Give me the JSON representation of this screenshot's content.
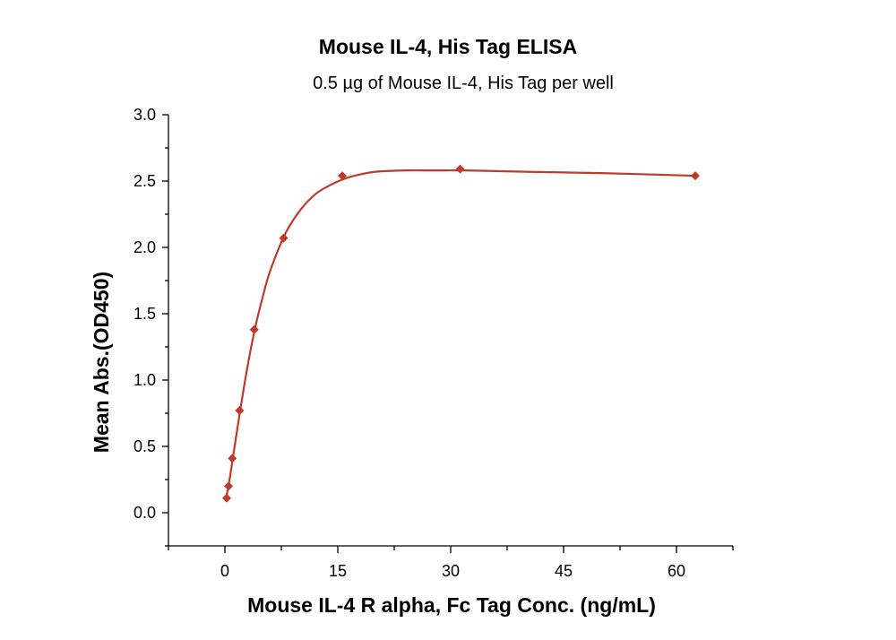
{
  "chart_data": {
    "type": "scatter",
    "title": "Mouse IL-4, His Tag ELISA",
    "subtitle": "0.5 µg of Mouse IL-4, His Tag per well",
    "xlabel": "Mouse IL-4 R alpha, Fc Tag Conc. (ng/mL)",
    "ylabel": "Mean Abs.(OD450)",
    "xlim": [
      -7.5,
      67.5
    ],
    "ylim": [
      -0.25,
      3.0
    ],
    "x_ticks": [
      0,
      15,
      30,
      45,
      60
    ],
    "x_tick_labels": [
      "0",
      "15",
      "30",
      "45",
      "60"
    ],
    "y_ticks": [
      0.0,
      0.5,
      1.0,
      1.5,
      2.0,
      2.5,
      3.0
    ],
    "y_tick_labels": [
      "0.0",
      "0.5",
      "1.0",
      "1.5",
      "2.0",
      "2.5",
      "3.0"
    ],
    "grid": false,
    "series": [
      {
        "name": "Mean Abs.(OD450)",
        "color": "#c0392b",
        "marker": "diamond",
        "x": [
          0.24,
          0.49,
          0.98,
          1.95,
          3.9,
          7.8,
          15.6,
          31.25,
          62.5
        ],
        "y": [
          0.11,
          0.2,
          0.41,
          0.77,
          1.38,
          2.07,
          2.54,
          2.59,
          2.54
        ]
      }
    ],
    "fit_curve": {
      "color": "#c0392b",
      "x": [
        0.15,
        0.5,
        1,
        2,
        3,
        4,
        5,
        6,
        8,
        10,
        12,
        14,
        16,
        18,
        20,
        24,
        28,
        32,
        40,
        50,
        62.5
      ],
      "y": [
        0.11,
        0.21,
        0.39,
        0.76,
        1.1,
        1.39,
        1.62,
        1.82,
        2.1,
        2.28,
        2.4,
        2.47,
        2.52,
        2.55,
        2.57,
        2.58,
        2.58,
        2.58,
        2.57,
        2.56,
        2.54
      ]
    }
  }
}
